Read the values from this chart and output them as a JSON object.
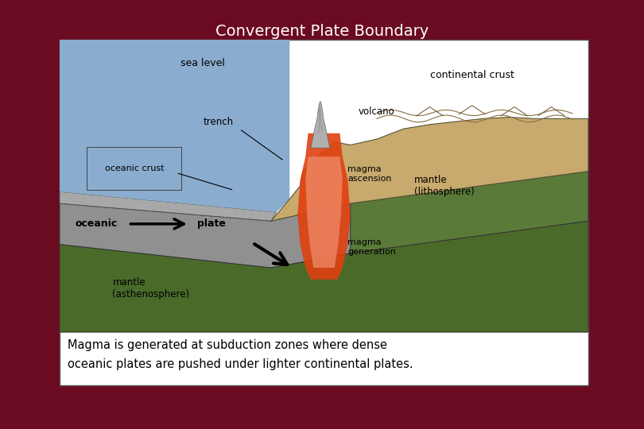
{
  "title": "Convergent Plate Boundary",
  "title_color": "#FFFFFF",
  "title_fontsize": 14,
  "bg_color": "#6B0B22",
  "box_bg": "#FFFFFF",
  "caption_line1": "Magma is generated at subduction zones where dense",
  "caption_line2": "oceanic plates are pushed under lighter continental plates.",
  "caption_fontsize": 10.5,
  "ocean_color": "#8AACCF",
  "continental_crust_color": "#C8A96E",
  "oceanic_plate_color": "#909090",
  "oceanic_crust_thin_color": "#A8A8A8",
  "mantle_litho_color": "#5A7A3A",
  "mantle_astheno_color": "#4A6A2A",
  "magma_dark_color": "#E04010",
  "magma_light_color": "#F09070",
  "volcano_color": "#B0B0B0",
  "label_color": "#000000",
  "side_green_color": "#4A7030",
  "side_tan_color": "#B89A5E"
}
